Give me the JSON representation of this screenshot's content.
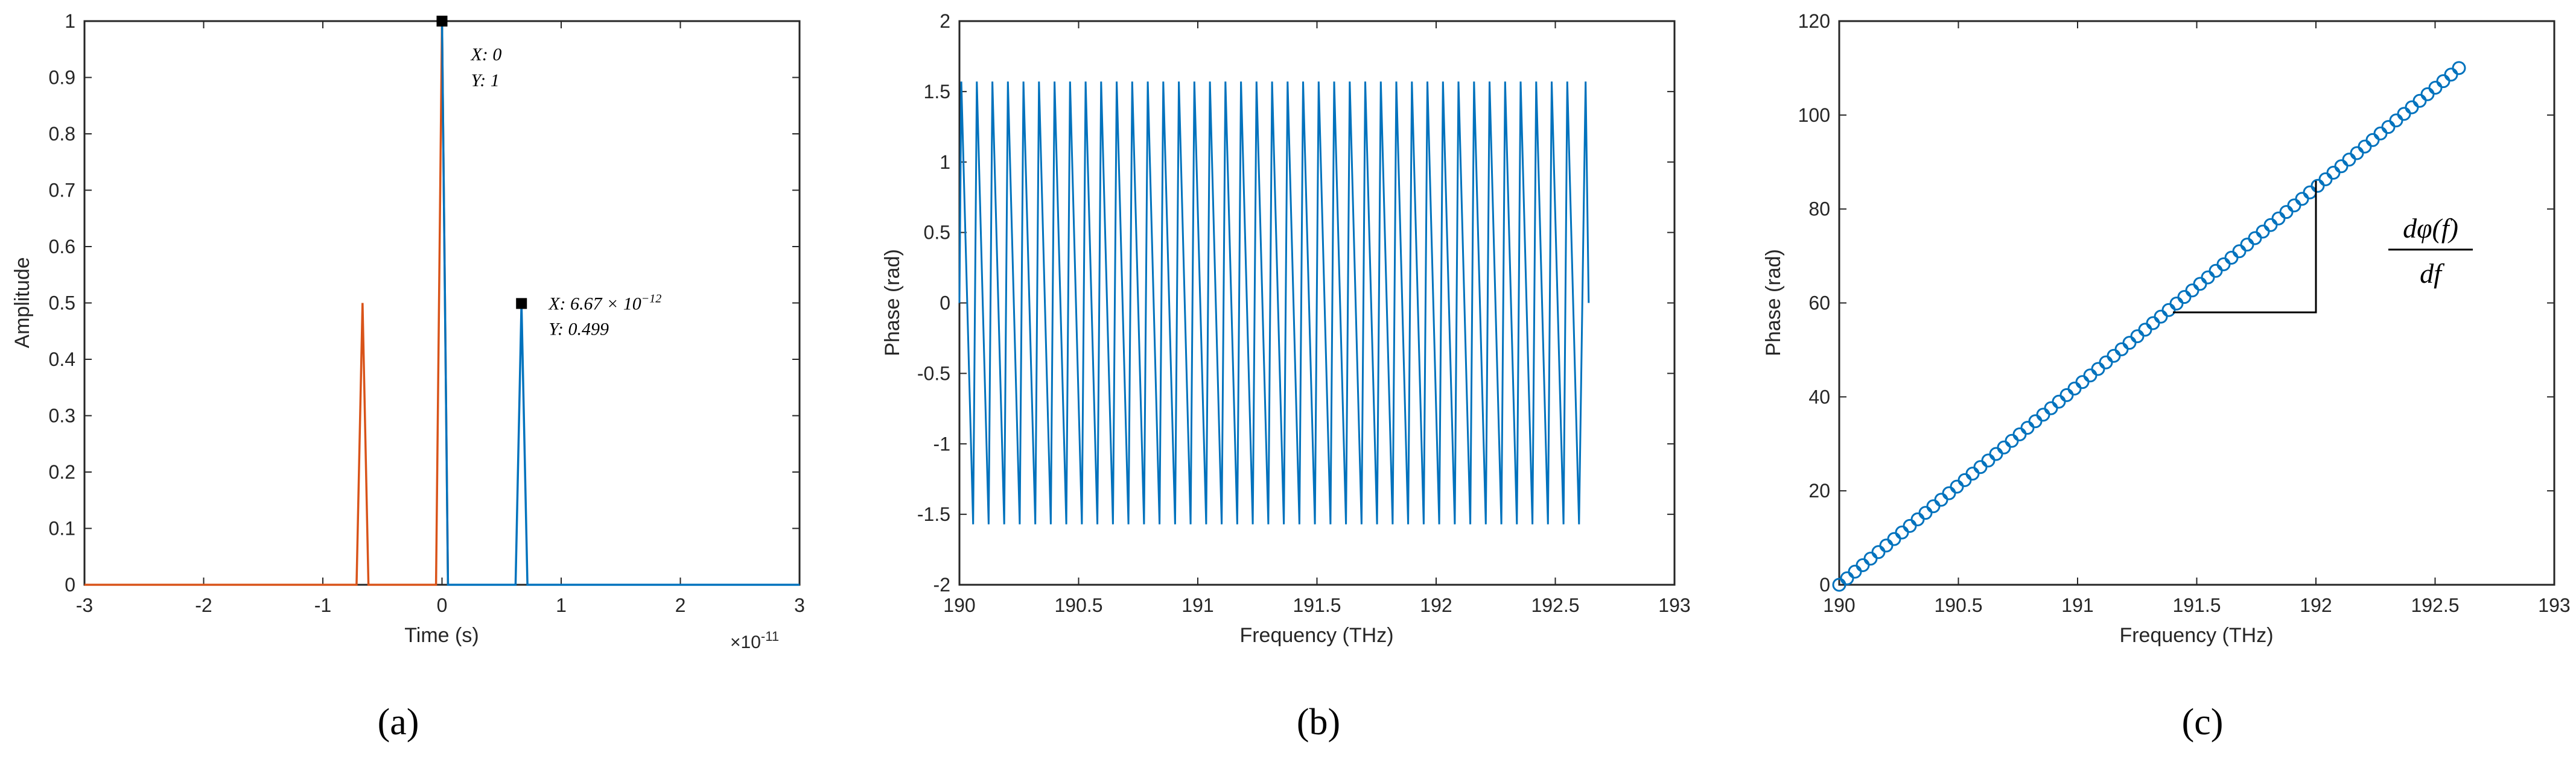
{
  "chart_data": [
    {
      "panel": "a",
      "caption": "(a)",
      "type": "line",
      "xlabel": "Time (s)",
      "ylabel": "Amplitude",
      "x_exponent_label": "×10",
      "x_exponent_power": "-11",
      "xlim": [
        -3,
        3
      ],
      "ylim": [
        0,
        1
      ],
      "xticks": [
        "-3",
        "-2",
        "-1",
        "0",
        "1",
        "2",
        "3"
      ],
      "yticks": [
        "0",
        "0.1",
        "0.2",
        "0.3",
        "0.4",
        "0.5",
        "0.6",
        "0.7",
        "0.8",
        "0.9",
        "1"
      ],
      "series": [
        {
          "color": "#D95319",
          "peaks": [
            {
              "x": -0.667,
              "y": 0.5
            },
            {
              "x": 0.0,
              "y": 1.0
            }
          ]
        },
        {
          "color": "#0072BD",
          "peaks": [
            {
              "x": 0.0,
              "y": 1.0
            },
            {
              "x": 0.667,
              "y": 0.499
            }
          ]
        }
      ],
      "datatips": [
        {
          "x": 0.0,
          "y": 1.0,
          "line1": "X: 0",
          "line2": "Y: 1"
        },
        {
          "x": 0.667,
          "y": 0.499,
          "line1": "X: 6.67 × 10",
          "line1_sup": "−12",
          "line2": "Y: 0.499"
        }
      ]
    },
    {
      "panel": "b",
      "caption": "(b)",
      "type": "line",
      "xlabel": "Frequency (THz)",
      "ylabel": "Phase (rad)",
      "xlim": [
        190,
        193
      ],
      "ylim": [
        -2,
        2
      ],
      "xticks": [
        "190",
        "190.5",
        "191",
        "191.5",
        "192",
        "192.5",
        "193"
      ],
      "yticks": [
        "-2",
        "-1.5",
        "-1",
        "-0.5",
        "0",
        "0.5",
        "1",
        "1.5",
        "2"
      ],
      "series": [
        {
          "color": "#0072BD",
          "x_start": 190.0,
          "x_end": 192.64,
          "num_cycles": 40,
          "amplitude": 1.5708,
          "start_value": 0,
          "end_value": 0
        }
      ]
    },
    {
      "panel": "c",
      "caption": "(c)",
      "type": "scatter",
      "xlabel": "Frequency (THz)",
      "ylabel": "Phase (rad)",
      "xlim": [
        190,
        193
      ],
      "ylim": [
        0,
        120
      ],
      "xticks": [
        "190",
        "190.5",
        "191",
        "191.5",
        "192",
        "192.5",
        "193"
      ],
      "yticks": [
        "0",
        "20",
        "40",
        "60",
        "80",
        "100",
        "120"
      ],
      "series": [
        {
          "color": "#0072BD",
          "x_start": 190.0,
          "x_end": 192.6,
          "num_points": 80,
          "y_start": 0,
          "y_end": 110
        }
      ],
      "annotation": {
        "numerator": "dφ(f)",
        "denominator": "df",
        "triangle": {
          "x1": 191.4,
          "y1": 58,
          "x2": 192.0,
          "y2": 86
        }
      }
    }
  ]
}
